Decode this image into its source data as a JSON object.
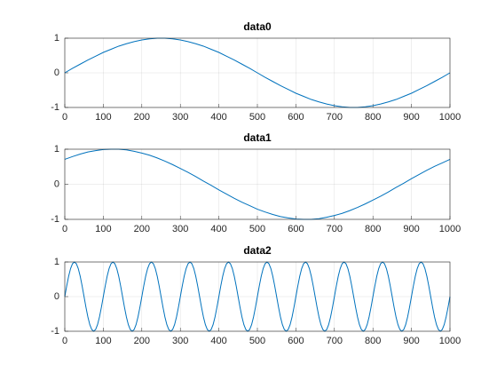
{
  "chart_data": [
    {
      "type": "line",
      "title": "data0",
      "x": [
        0,
        20,
        40,
        60,
        80,
        100,
        120,
        140,
        160,
        180,
        200,
        220,
        240,
        260,
        280,
        300,
        320,
        340,
        360,
        380,
        400,
        420,
        440,
        460,
        480,
        500,
        520,
        540,
        560,
        580,
        600,
        620,
        640,
        660,
        680,
        700,
        720,
        740,
        760,
        780,
        800,
        820,
        840,
        860,
        880,
        900,
        920,
        940,
        960,
        980,
        1000
      ],
      "series": [
        {
          "name": "data0",
          "color": "#0072bd",
          "values": [
            0,
            0.13,
            0.25,
            0.37,
            0.48,
            0.59,
            0.68,
            0.77,
            0.84,
            0.9,
            0.95,
            0.98,
            1,
            1,
            0.98,
            0.95,
            0.9,
            0.84,
            0.77,
            0.68,
            0.59,
            0.48,
            0.37,
            0.25,
            0.13,
            0,
            -0.13,
            -0.25,
            -0.37,
            -0.48,
            -0.59,
            -0.68,
            -0.77,
            -0.84,
            -0.9,
            -0.95,
            -0.98,
            -1,
            -1,
            -0.98,
            -0.95,
            -0.9,
            -0.84,
            -0.77,
            -0.68,
            -0.59,
            -0.48,
            -0.37,
            -0.25,
            -0.13,
            0
          ]
        }
      ],
      "xlim": [
        0,
        1000
      ],
      "xticks": [
        0,
        100,
        200,
        300,
        400,
        500,
        600,
        700,
        800,
        900,
        1000
      ],
      "ylim": [
        -1,
        1
      ],
      "yticks": [
        -1,
        0,
        1
      ],
      "grid": true
    },
    {
      "type": "line",
      "title": "data1",
      "x": [
        0,
        20,
        40,
        60,
        80,
        100,
        120,
        140,
        160,
        180,
        200,
        220,
        240,
        260,
        280,
        300,
        320,
        340,
        360,
        380,
        400,
        420,
        440,
        460,
        480,
        500,
        520,
        540,
        560,
        580,
        600,
        620,
        640,
        660,
        680,
        700,
        720,
        740,
        760,
        780,
        800,
        820,
        840,
        860,
        880,
        900,
        920,
        940,
        960,
        980,
        1000
      ],
      "series": [
        {
          "name": "data1",
          "color": "#0072bd",
          "values": [
            0.71,
            0.79,
            0.86,
            0.92,
            0.96,
            0.99,
            1,
            1,
            0.98,
            0.94,
            0.89,
            0.83,
            0.75,
            0.66,
            0.56,
            0.45,
            0.34,
            0.22,
            0.09,
            -0.03,
            -0.16,
            -0.28,
            -0.4,
            -0.51,
            -0.61,
            -0.71,
            -0.79,
            -0.86,
            -0.92,
            -0.96,
            -0.99,
            -1,
            -1,
            -0.98,
            -0.94,
            -0.89,
            -0.83,
            -0.75,
            -0.66,
            -0.56,
            -0.45,
            -0.34,
            -0.22,
            -0.09,
            0.03,
            0.16,
            0.28,
            0.4,
            0.51,
            0.61,
            0.71
          ]
        }
      ],
      "xlim": [
        0,
        1000
      ],
      "xticks": [
        0,
        100,
        200,
        300,
        400,
        500,
        600,
        700,
        800,
        900,
        1000
      ],
      "ylim": [
        -1,
        1
      ],
      "yticks": [
        -1,
        0,
        1
      ],
      "grid": true
    },
    {
      "type": "line",
      "title": "data2",
      "x": [
        0,
        5,
        10,
        15,
        20,
        25,
        30,
        35,
        40,
        45,
        50,
        55,
        60,
        65,
        70,
        75,
        80,
        85,
        90,
        95,
        100,
        105,
        110,
        115,
        120,
        125,
        130,
        135,
        140,
        145,
        150,
        155,
        160,
        165,
        170,
        175,
        180,
        185,
        190,
        195,
        200,
        205,
        210,
        215,
        220,
        225,
        230,
        235,
        240,
        245,
        250,
        255,
        260,
        265,
        270,
        275,
        280,
        285,
        290,
        295,
        300,
        305,
        310,
        315,
        320,
        325,
        330,
        335,
        340,
        345,
        350,
        355,
        360,
        365,
        370,
        375,
        380,
        385,
        390,
        395,
        400,
        405,
        410,
        415,
        420,
        425,
        430,
        435,
        440,
        445,
        450,
        455,
        460,
        465,
        470,
        475,
        480,
        485,
        490,
        495,
        500,
        505,
        510,
        515,
        520,
        525,
        530,
        535,
        540,
        545,
        550,
        555,
        560,
        565,
        570,
        575,
        580,
        585,
        590,
        595,
        600,
        605,
        610,
        615,
        620,
        625,
        630,
        635,
        640,
        645,
        650,
        655,
        660,
        665,
        670,
        675,
        680,
        685,
        690,
        695,
        700,
        705,
        710,
        715,
        720,
        725,
        730,
        735,
        740,
        745,
        750,
        755,
        760,
        765,
        770,
        775,
        780,
        785,
        790,
        795,
        800,
        805,
        810,
        815,
        820,
        825,
        830,
        835,
        840,
        845,
        850,
        855,
        860,
        865,
        870,
        875,
        880,
        885,
        890,
        895,
        900,
        905,
        910,
        915,
        920,
        925,
        930,
        935,
        940,
        945,
        950,
        955,
        960,
        965,
        970,
        975,
        980,
        985,
        990,
        995,
        1000
      ],
      "series": [
        {
          "name": "data2",
          "color": "#0072bd",
          "values": [
            0,
            0.31,
            0.59,
            0.81,
            0.95,
            1,
            0.95,
            0.81,
            0.59,
            0.31,
            0,
            -0.31,
            -0.59,
            -0.81,
            -0.95,
            -1,
            -0.95,
            -0.81,
            -0.59,
            -0.31,
            0,
            0.31,
            0.59,
            0.81,
            0.95,
            1,
            0.95,
            0.81,
            0.59,
            0.31,
            0,
            -0.31,
            -0.59,
            -0.81,
            -0.95,
            -1,
            -0.95,
            -0.81,
            -0.59,
            -0.31,
            0,
            0.31,
            0.59,
            0.81,
            0.95,
            1,
            0.95,
            0.81,
            0.59,
            0.31,
            0,
            -0.31,
            -0.59,
            -0.81,
            -0.95,
            -1,
            -0.95,
            -0.81,
            -0.59,
            -0.31,
            0,
            0.31,
            0.59,
            0.81,
            0.95,
            1,
            0.95,
            0.81,
            0.59,
            0.31,
            0,
            -0.31,
            -0.59,
            -0.81,
            -0.95,
            -1,
            -0.95,
            -0.81,
            -0.59,
            -0.31,
            0,
            0.31,
            0.59,
            0.81,
            0.95,
            1,
            0.95,
            0.81,
            0.59,
            0.31,
            0,
            -0.31,
            -0.59,
            -0.81,
            -0.95,
            -1,
            -0.95,
            -0.81,
            -0.59,
            -0.31,
            0,
            0.31,
            0.59,
            0.81,
            0.95,
            1,
            0.95,
            0.81,
            0.59,
            0.31,
            0,
            -0.31,
            -0.59,
            -0.81,
            -0.95,
            -1,
            -0.95,
            -0.81,
            -0.59,
            -0.31,
            0,
            0.31,
            0.59,
            0.81,
            0.95,
            1,
            0.95,
            0.81,
            0.59,
            0.31,
            0,
            -0.31,
            -0.59,
            -0.81,
            -0.95,
            -1,
            -0.95,
            -0.81,
            -0.59,
            -0.31,
            0,
            0.31,
            0.59,
            0.81,
            0.95,
            1,
            0.95,
            0.81,
            0.59,
            0.31,
            0,
            -0.31,
            -0.59,
            -0.81,
            -0.95,
            -1,
            -0.95,
            -0.81,
            -0.59,
            -0.31,
            0,
            0.31,
            0.59,
            0.81,
            0.95,
            1,
            0.95,
            0.81,
            0.59,
            0.31,
            0,
            -0.31,
            -0.59,
            -0.81,
            -0.95,
            -1,
            -0.95,
            -0.81,
            -0.59,
            -0.31,
            0,
            0.31,
            0.59,
            0.81,
            0.95,
            1,
            0.95,
            0.81,
            0.59,
            0.31,
            0,
            -0.31,
            -0.59,
            -0.81,
            -0.95,
            -1,
            -0.95,
            -0.81,
            -0.59,
            -0.31,
            0
          ]
        }
      ],
      "xlim": [
        0,
        1000
      ],
      "xticks": [
        0,
        100,
        200,
        300,
        400,
        500,
        600,
        700,
        800,
        900,
        1000
      ],
      "ylim": [
        -1,
        1
      ],
      "yticks": [
        -1,
        0,
        1
      ],
      "grid": true
    }
  ]
}
